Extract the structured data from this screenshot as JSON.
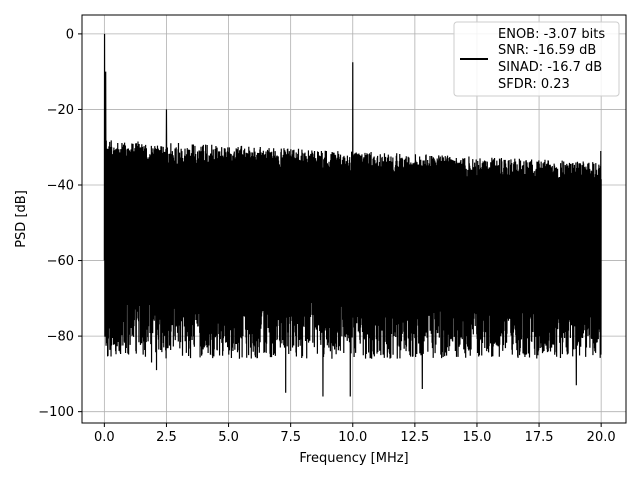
{
  "chart_data": {
    "type": "line",
    "title": "",
    "xlabel": "Frequency [MHz]",
    "ylabel": "PSD [dB]",
    "xlim": [
      -0.9,
      21.0
    ],
    "ylim": [
      -103,
      5
    ],
    "xticks": [
      0.0,
      2.5,
      5.0,
      7.5,
      10.0,
      12.5,
      15.0,
      17.5,
      20.0
    ],
    "xtick_labels": [
      "0.0",
      "2.5",
      "5.0",
      "7.5",
      "10.0",
      "12.5",
      "15.0",
      "17.5",
      "20.0"
    ],
    "yticks": [
      0,
      -20,
      -40,
      -60,
      -80,
      -100
    ],
    "ytick_labels": [
      "0",
      "−20",
      "−40",
      "−60",
      "−80",
      "−100"
    ],
    "grid": true,
    "legend_position": "top-right",
    "series": [
      {
        "color": "#000000",
        "x_range": [
          0.0,
          20.0
        ],
        "noise_upper_start": -28,
        "noise_upper_end": -34,
        "noise_lower_typical": -78,
        "peaks": [
          {
            "x": 0.0,
            "y": 0
          },
          {
            "x": 0.05,
            "y": -10
          },
          {
            "x": 2.5,
            "y": -20
          },
          {
            "x": 10.0,
            "y": -7.5
          }
        ],
        "deep_dips": [
          {
            "x": 1.9,
            "y": -87
          },
          {
            "x": 2.1,
            "y": -89
          },
          {
            "x": 7.3,
            "y": -95
          },
          {
            "x": 8.8,
            "y": -96
          },
          {
            "x": 9.9,
            "y": -96
          },
          {
            "x": 10.0,
            "y": -98
          },
          {
            "x": 12.8,
            "y": -94
          },
          {
            "x": 19.0,
            "y": -93
          }
        ]
      }
    ],
    "legend_lines": [
      "ENOB: -3.07 bits",
      "SNR: -16.59 dB",
      "SINAD: -16.7 dB",
      "SFDR: 0.23"
    ]
  }
}
